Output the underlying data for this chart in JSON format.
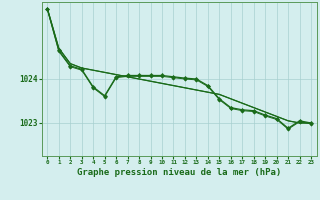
{
  "background_color": "#d4eeee",
  "grid_color": "#a8d0d0",
  "line_color": "#1a6b1a",
  "marker_color": "#1a6b1a",
  "xlabel": "Graphe pression niveau de la mer (hPa)",
  "xlabel_fontsize": 6.5,
  "ylim": [
    1022.25,
    1025.75
  ],
  "xlim": [
    -0.5,
    23.5
  ],
  "yticks": [
    1023,
    1024
  ],
  "line1": [
    1025.6,
    1024.7,
    1024.35,
    1024.25,
    1024.2,
    1024.15,
    1024.1,
    1024.05,
    1024.0,
    1023.95,
    1023.9,
    1023.85,
    1023.8,
    1023.75,
    1023.7,
    1023.65,
    1023.55,
    1023.45,
    1023.35,
    1023.25,
    1023.15,
    1023.05,
    1023.0,
    1023.0
  ],
  "line2": [
    1025.6,
    1024.7,
    1024.35,
    1024.25,
    1024.2,
    1024.15,
    1024.1,
    1024.05,
    1024.0,
    1023.95,
    1023.9,
    1023.85,
    1023.8,
    1023.75,
    1023.7,
    1023.65,
    1023.55,
    1023.45,
    1023.35,
    1023.25,
    1023.15,
    1023.05,
    1023.0,
    1023.0
  ],
  "line3": [
    1025.6,
    1024.65,
    1024.3,
    1024.22,
    1023.82,
    1023.62,
    1024.05,
    1024.08,
    1024.08,
    1024.08,
    1024.08,
    1024.05,
    1024.02,
    1024.0,
    1023.85,
    1023.55,
    1023.35,
    1023.3,
    1023.28,
    1023.18,
    1023.1,
    1022.88,
    1023.05,
    1023.0
  ],
  "line4": [
    1025.58,
    1024.63,
    1024.28,
    1024.2,
    1023.8,
    1023.6,
    1024.03,
    1024.06,
    1024.06,
    1024.06,
    1024.06,
    1024.03,
    1024.0,
    1023.98,
    1023.83,
    1023.53,
    1023.33,
    1023.28,
    1023.26,
    1023.16,
    1023.08,
    1022.86,
    1023.03,
    1022.98
  ]
}
